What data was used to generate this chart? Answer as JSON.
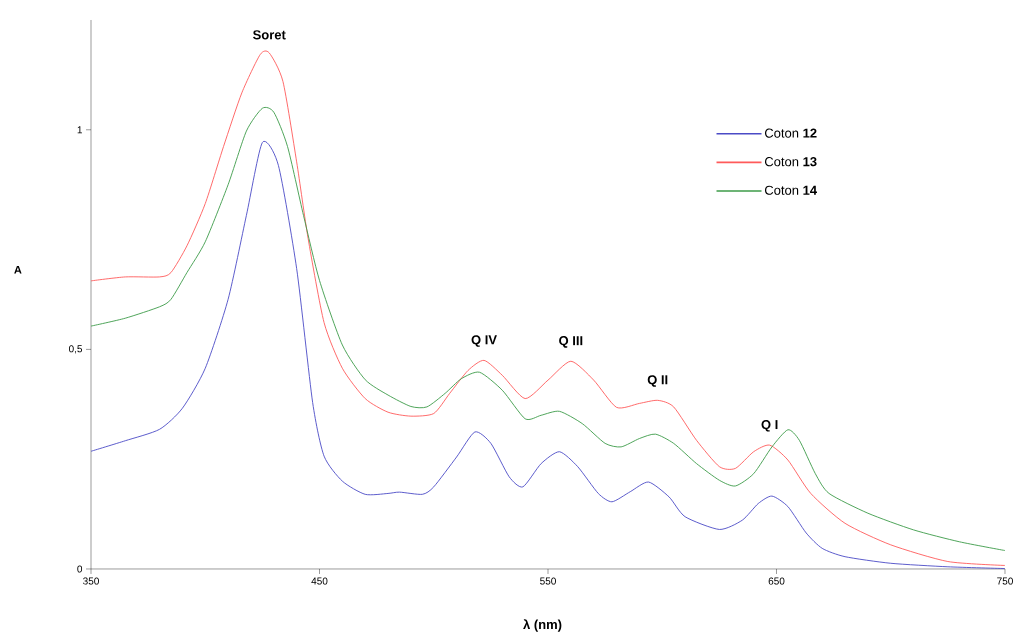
{
  "chart_data": {
    "type": "line",
    "xlabel": "**λ (nm)**",
    "ylabel": "**A**",
    "xlim": [
      350,
      750
    ],
    "ylim": [
      0,
      1.25
    ],
    "xticks": [
      350,
      450,
      550,
      650,
      750
    ],
    "yticks": [
      0,
      {
        "value": 0.5,
        "label": "0,5"
      },
      1
    ],
    "legend": "top right",
    "annotations": [
      {
        "text": "**Soret**",
        "x": 428,
        "y": 1.175
      },
      {
        "text": "**Q IV**",
        "x": 522,
        "y": 0.475
      },
      {
        "text": "**Q III**",
        "x": 560,
        "y": 0.473
      },
      {
        "text": "**Q II**",
        "x": 598,
        "y": 0.384
      },
      {
        "text": "**Q I**",
        "x": 647,
        "y": 0.282
      }
    ],
    "series": [
      {
        "name": "Coton **12**",
        "color": "#4b4bc6",
        "x": [
          350,
          365,
          380,
          390,
          400,
          410,
          418,
          425,
          432,
          440,
          447,
          452,
          460,
          470,
          480,
          485,
          495,
          500,
          510,
          518,
          525,
          533,
          539,
          547,
          555,
          563,
          572,
          578,
          586,
          594,
          603,
          610,
          625,
          635,
          642,
          648,
          655,
          663,
          670,
          680,
          700,
          725,
          750
        ],
        "values": [
          0.268,
          0.292,
          0.318,
          0.366,
          0.457,
          0.614,
          0.805,
          0.971,
          0.919,
          0.684,
          0.379,
          0.257,
          0.2,
          0.17,
          0.172,
          0.175,
          0.17,
          0.187,
          0.255,
          0.312,
          0.286,
          0.21,
          0.187,
          0.24,
          0.267,
          0.233,
          0.172,
          0.153,
          0.176,
          0.198,
          0.164,
          0.119,
          0.09,
          0.111,
          0.149,
          0.166,
          0.142,
          0.082,
          0.047,
          0.028,
          0.013,
          0.005,
          0.001
        ]
      },
      {
        "name": "Coton **13**",
        "color": "#ff5a5a",
        "x": [
          350,
          365,
          380,
          385,
          392,
          400,
          408,
          416,
          424,
          428,
          434,
          440,
          445,
          452,
          460,
          470,
          480,
          490,
          500,
          507,
          515,
          522,
          530,
          540,
          550,
          560,
          570,
          580,
          590,
          598,
          605,
          615,
          625,
          632,
          640,
          647,
          655,
          665,
          680,
          700,
          725,
          750
        ],
        "values": [
          0.656,
          0.665,
          0.665,
          0.675,
          0.736,
          0.832,
          0.962,
          1.084,
          1.171,
          1.175,
          1.11,
          0.927,
          0.753,
          0.561,
          0.457,
          0.388,
          0.357,
          0.348,
          0.354,
          0.4,
          0.452,
          0.475,
          0.441,
          0.388,
          0.43,
          0.473,
          0.43,
          0.368,
          0.377,
          0.384,
          0.369,
          0.293,
          0.233,
          0.229,
          0.267,
          0.282,
          0.248,
          0.172,
          0.104,
          0.055,
          0.017,
          0.008
        ]
      },
      {
        "name": "Coton **14**",
        "color": "#3c9b48",
        "x": [
          350,
          365,
          380,
          385,
          392,
          400,
          410,
          418,
          425,
          430,
          436,
          443,
          450,
          460,
          470,
          480,
          490,
          497,
          505,
          512,
          520,
          530,
          540,
          547,
          555,
          565,
          575,
          582,
          590,
          597,
          605,
          615,
          625,
          632,
          640,
          648,
          655,
          660,
          667,
          673,
          690,
          710,
          730,
          750
        ],
        "values": [
          0.553,
          0.571,
          0.597,
          0.614,
          0.675,
          0.745,
          0.875,
          0.997,
          1.049,
          1.04,
          0.962,
          0.805,
          0.657,
          0.51,
          0.431,
          0.396,
          0.37,
          0.369,
          0.4,
          0.433,
          0.448,
          0.407,
          0.342,
          0.35,
          0.359,
          0.331,
          0.286,
          0.278,
          0.297,
          0.307,
          0.286,
          0.24,
          0.202,
          0.189,
          0.217,
          0.278,
          0.317,
          0.293,
          0.217,
          0.172,
          0.127,
          0.089,
          0.062,
          0.042
        ]
      }
    ]
  }
}
